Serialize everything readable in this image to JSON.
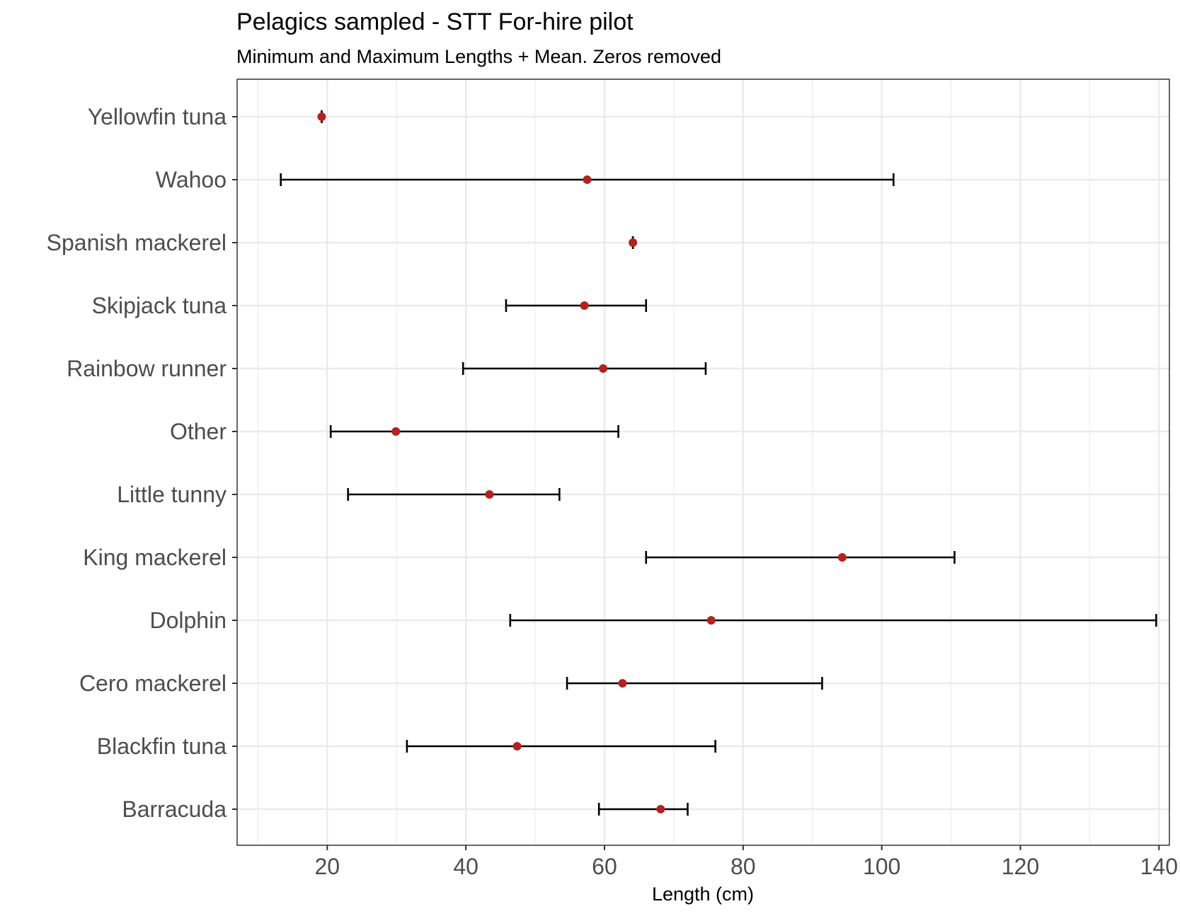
{
  "chart_data": {
    "type": "errorbar",
    "title": "Pelagics sampled - STT For-hire pilot",
    "subtitle": "Minimum and Maximum Lengths + Mean. Zeros removed",
    "xlabel": "Length (cm)",
    "ylabel": "",
    "xlim": [
      7,
      141.5
    ],
    "x_ticks": [
      20,
      40,
      60,
      80,
      100,
      120,
      140
    ],
    "x_minor_ticks": [
      10,
      30,
      50,
      70,
      90,
      110,
      130
    ],
    "grid": true,
    "mean_color": "#b22222",
    "bar_color": "#000000",
    "categories": [
      "Yellowfin tuna",
      "Wahoo",
      "Spanish mackerel",
      "Skipjack tuna",
      "Rainbow runner",
      "Other",
      "Little tunny",
      "King mackerel",
      "Dolphin",
      "Cero mackerel",
      "Blackfin tuna",
      "Barracuda"
    ],
    "series": [
      {
        "category": "Yellowfin tuna",
        "min": 19.2,
        "max": 19.2,
        "mean": 19.2
      },
      {
        "category": "Wahoo",
        "min": 13.3,
        "max": 101.7,
        "mean": 57.5
      },
      {
        "category": "Spanish mackerel",
        "min": 64.1,
        "max": 64.1,
        "mean": 64.1
      },
      {
        "category": "Skipjack tuna",
        "min": 45.8,
        "max": 66.0,
        "mean": 57.1
      },
      {
        "category": "Rainbow runner",
        "min": 39.6,
        "max": 74.6,
        "mean": 59.8
      },
      {
        "category": "Other",
        "min": 20.5,
        "max": 62.0,
        "mean": 29.9
      },
      {
        "category": "Little tunny",
        "min": 23.0,
        "max": 53.5,
        "mean": 43.4
      },
      {
        "category": "King mackerel",
        "min": 66.0,
        "max": 110.5,
        "mean": 94.3
      },
      {
        "category": "Dolphin",
        "min": 46.4,
        "max": 139.6,
        "mean": 75.4
      },
      {
        "category": "Cero mackerel",
        "min": 54.6,
        "max": 91.4,
        "mean": 62.6
      },
      {
        "category": "Blackfin tuna",
        "min": 31.5,
        "max": 76.0,
        "mean": 47.4
      },
      {
        "category": "Barracuda",
        "min": 59.2,
        "max": 72.0,
        "mean": 68.1
      }
    ]
  }
}
